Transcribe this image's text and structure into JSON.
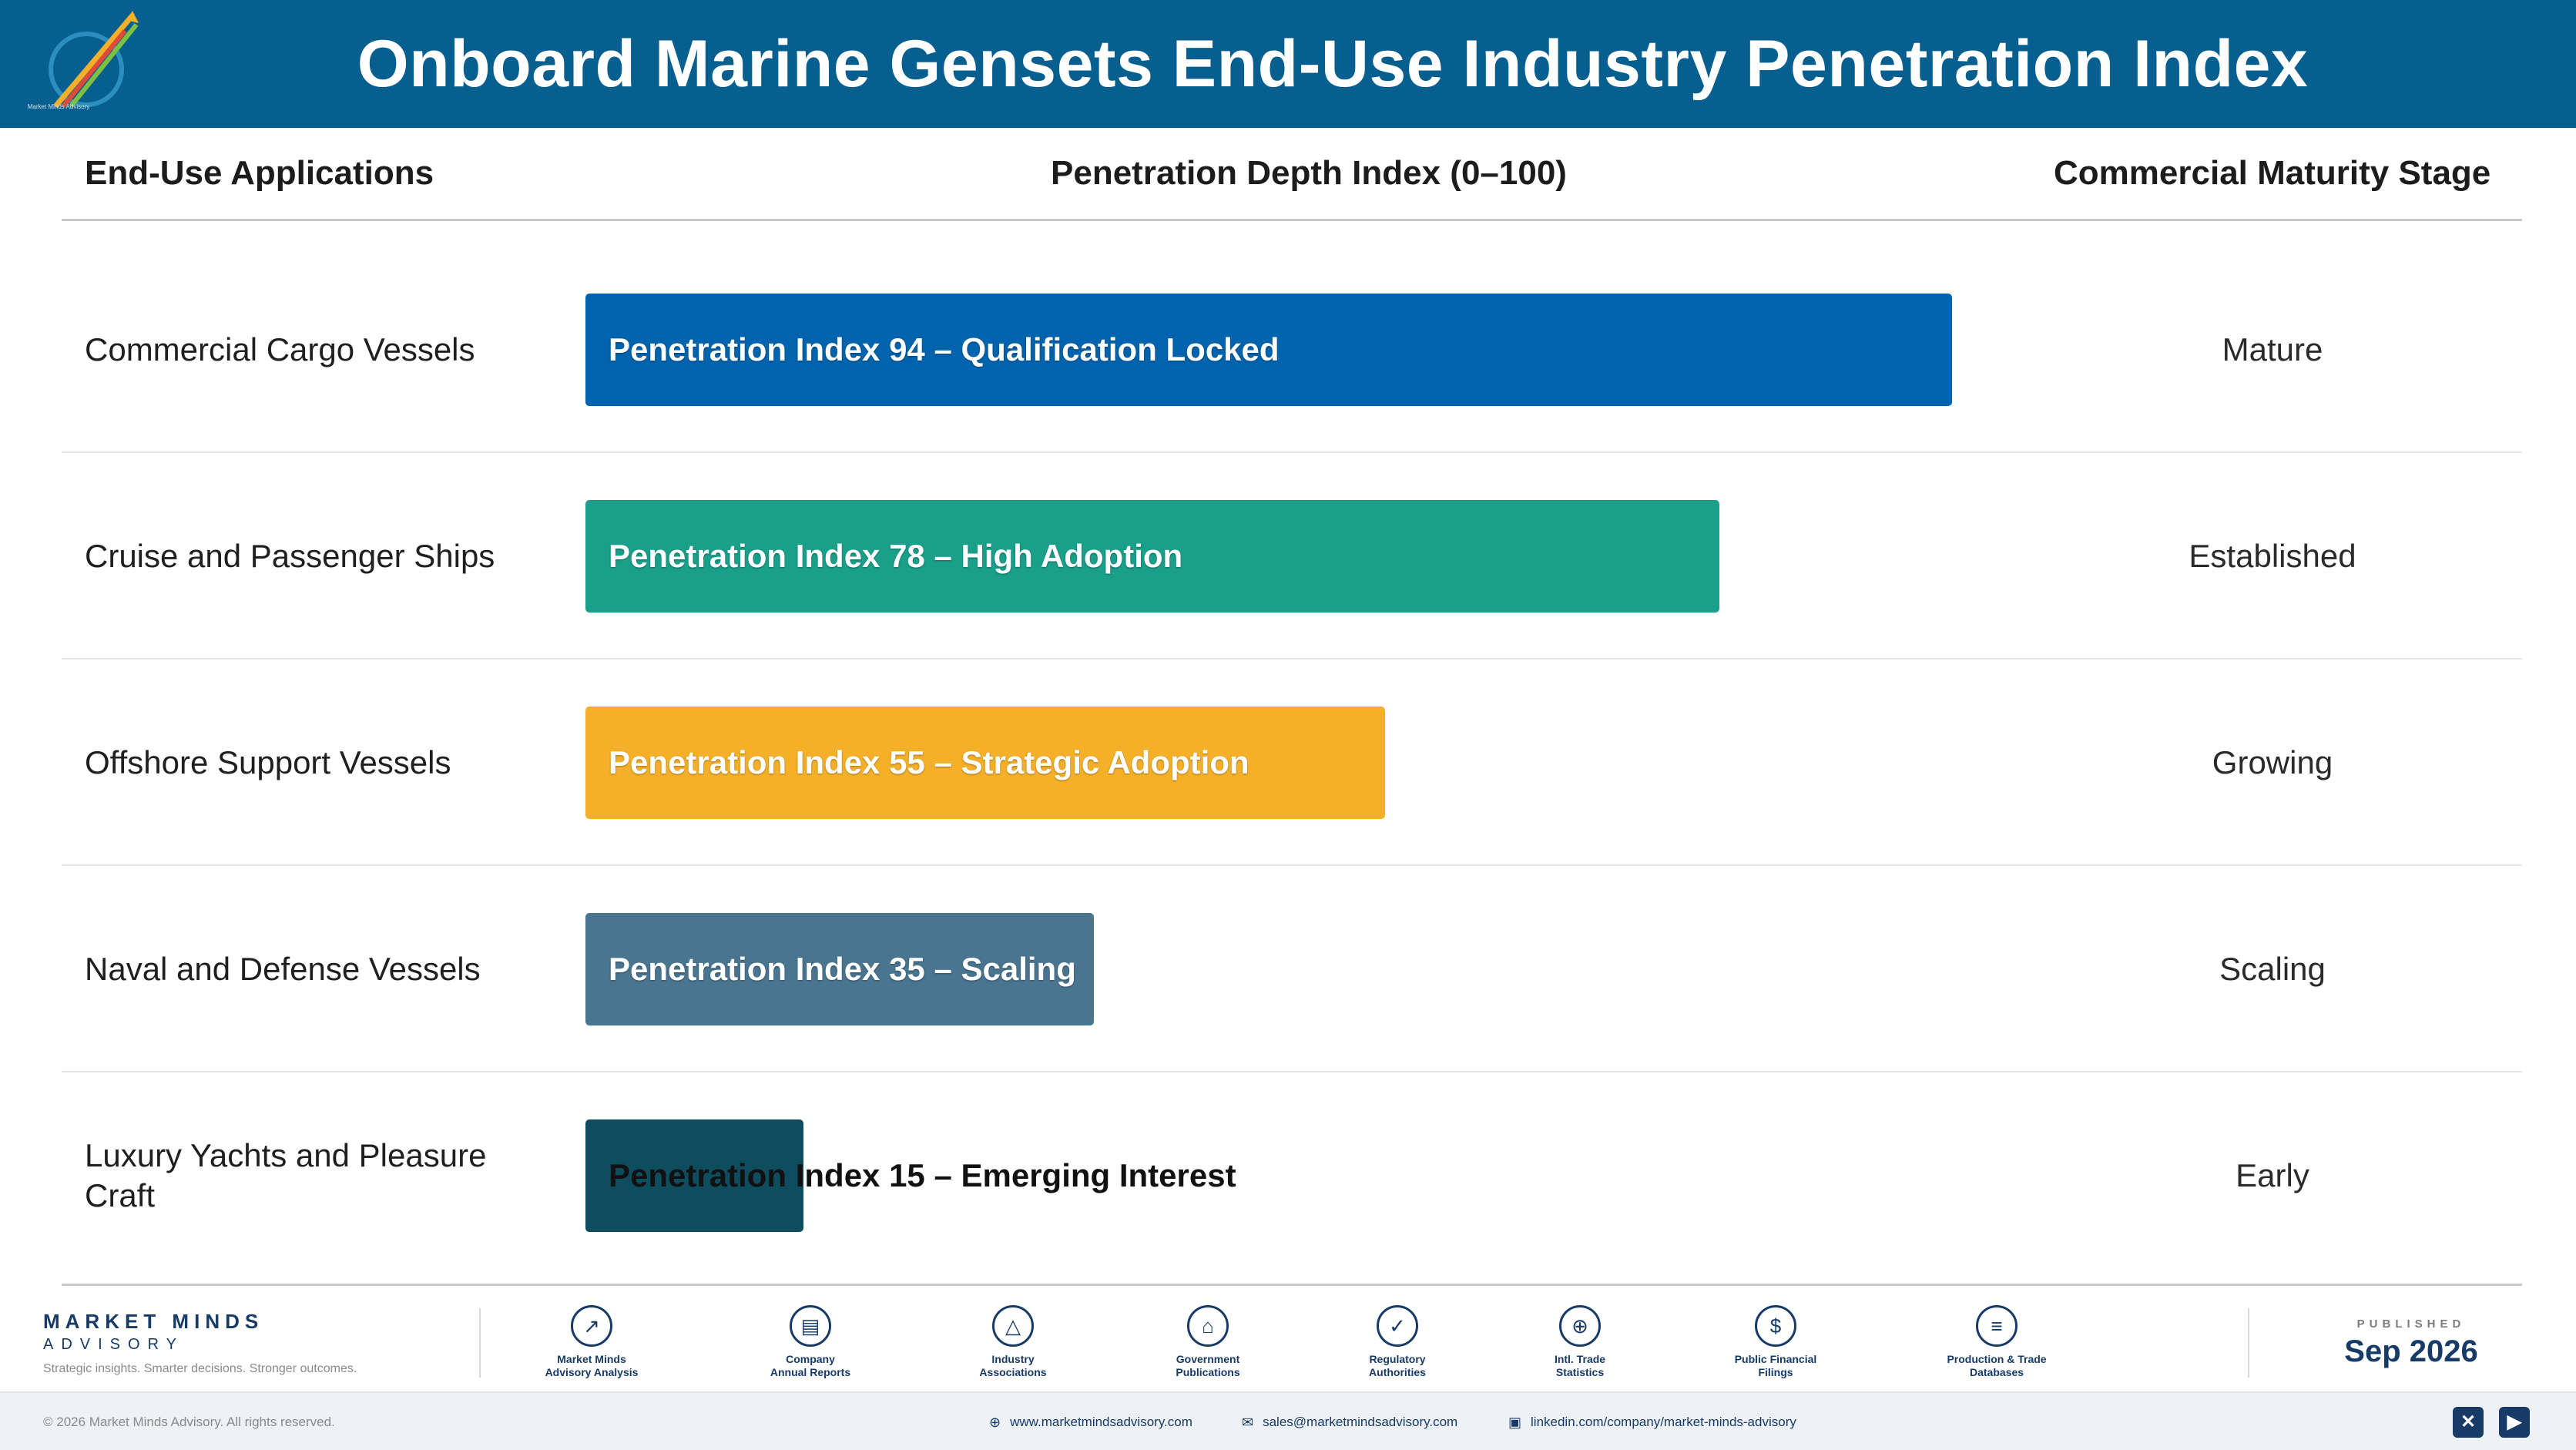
{
  "header": {
    "title": "Onboard Marine Gensets End-Use Industry Penetration Index",
    "logo_caption": "Market Minds Advisory"
  },
  "columns": {
    "applications": "End-Use Applications",
    "index": "Penetration Depth Index (0–100)",
    "stage": "Commercial Maturity Stage"
  },
  "chart_data": {
    "type": "bar",
    "orientation": "horizontal",
    "title": "Onboard Marine Gensets End-Use Industry Penetration Index",
    "xlabel": "Penetration Depth Index (0–100)",
    "xlim": [
      0,
      100
    ],
    "grid": false,
    "categories": [
      "Commercial Cargo Vessels",
      "Cruise and Passenger Ships",
      "Offshore Support Vessels",
      "Naval and Defense Vessels",
      "Luxury Yachts and Pleasure Craft"
    ],
    "values": [
      94,
      78,
      55,
      35,
      15
    ],
    "bar_labels": [
      "Penetration Index 94 – Qualification Locked",
      "Penetration Index 78 – High Adoption",
      "Penetration Index 55 – Strategic Adoption",
      "Penetration Index 35 – Scaling",
      "Penetration Index 15 – Emerging Interest"
    ],
    "stages": [
      "Mature",
      "Established",
      "Growing",
      "Scaling",
      "Early"
    ],
    "colors": [
      "#0063ad",
      "#1aa08a",
      "#f5b02a",
      "#4a7590",
      "#0d4d5e"
    ],
    "label_colors": [
      "#ffffff",
      "#ffffff",
      "#ffffff",
      "#ffffff",
      "#111111"
    ]
  },
  "footer": {
    "brand_name": "MARKET MINDS",
    "brand_sub": "ADVISORY",
    "tagline": "Strategic insights. Smarter decisions. Stronger outcomes.",
    "sources": [
      {
        "label": "Market Minds\nAdvisory Analysis",
        "icon": "chart-line-icon",
        "glyph": "↗"
      },
      {
        "label": "Company\nAnnual Reports",
        "icon": "document-icon",
        "glyph": "▤"
      },
      {
        "label": "Industry\nAssociations",
        "icon": "network-icon",
        "glyph": "△"
      },
      {
        "label": "Government\nPublications",
        "icon": "bank-icon",
        "glyph": "⌂"
      },
      {
        "label": "Regulatory\nAuthorities",
        "icon": "shield-icon",
        "glyph": "✓"
      },
      {
        "label": "Intl. Trade\nStatistics",
        "icon": "globe-icon",
        "glyph": "⊕"
      },
      {
        "label": "Public Financial\nFilings",
        "icon": "dollar-icon",
        "glyph": "$"
      },
      {
        "label": "Production & Trade\nDatabases",
        "icon": "database-icon",
        "glyph": "≡"
      }
    ],
    "published_label": "PUBLISHED",
    "published_date": "Sep 2026"
  },
  "bottom": {
    "copyright": "© 2026 Market Minds Advisory. All rights reserved.",
    "website": "www.marketmindsadvisory.com",
    "email": "sales@marketmindsadvisory.com",
    "linkedin": "linkedin.com/company/market-minds-advisory"
  }
}
